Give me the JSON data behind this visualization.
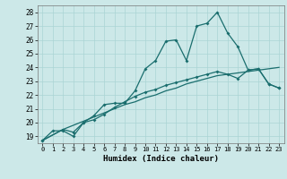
{
  "xlabel": "Humidex (Indice chaleur)",
  "bg_color": "#cce8e8",
  "line_color": "#1a6e6e",
  "grid_color": "#aad4d4",
  "xlim": [
    -0.5,
    23.5
  ],
  "ylim": [
    18.5,
    28.5
  ],
  "xticks": [
    0,
    1,
    2,
    3,
    4,
    5,
    6,
    7,
    8,
    9,
    10,
    11,
    12,
    13,
    14,
    15,
    16,
    17,
    18,
    19,
    20,
    21,
    22,
    23
  ],
  "yticks": [
    19,
    20,
    21,
    22,
    23,
    24,
    25,
    26,
    27,
    28
  ],
  "line1_x": [
    0,
    1,
    2,
    3,
    4,
    5,
    6,
    7,
    8,
    9,
    10,
    11,
    12,
    13,
    14,
    15,
    16,
    17,
    18,
    19,
    20,
    21,
    22,
    23
  ],
  "line1_y": [
    18.7,
    19.4,
    19.4,
    19.0,
    20.0,
    20.5,
    21.3,
    21.4,
    21.4,
    22.3,
    23.9,
    24.5,
    25.9,
    26.0,
    24.5,
    27.0,
    27.2,
    28.0,
    26.5,
    25.5,
    23.8,
    23.9,
    22.8,
    22.5
  ],
  "line2_x": [
    0,
    2,
    3,
    4,
    5,
    6,
    7,
    8,
    9,
    10,
    11,
    12,
    13,
    14,
    15,
    16,
    17,
    18,
    19,
    20,
    21,
    22,
    23
  ],
  "line2_y": [
    18.7,
    19.5,
    19.3,
    20.0,
    20.2,
    20.6,
    21.1,
    21.5,
    21.9,
    22.2,
    22.4,
    22.7,
    22.9,
    23.1,
    23.3,
    23.5,
    23.7,
    23.5,
    23.2,
    23.8,
    23.9,
    22.8,
    22.5
  ],
  "line3_x": [
    0,
    1,
    2,
    3,
    4,
    5,
    6,
    7,
    8,
    9,
    10,
    11,
    12,
    13,
    14,
    15,
    16,
    17,
    18,
    19,
    20,
    21,
    22,
    23
  ],
  "line3_y": [
    18.7,
    19.1,
    19.5,
    19.8,
    20.1,
    20.4,
    20.7,
    21.0,
    21.3,
    21.5,
    21.8,
    22.0,
    22.3,
    22.5,
    22.8,
    23.0,
    23.2,
    23.4,
    23.5,
    23.6,
    23.7,
    23.8,
    23.9,
    24.0
  ]
}
